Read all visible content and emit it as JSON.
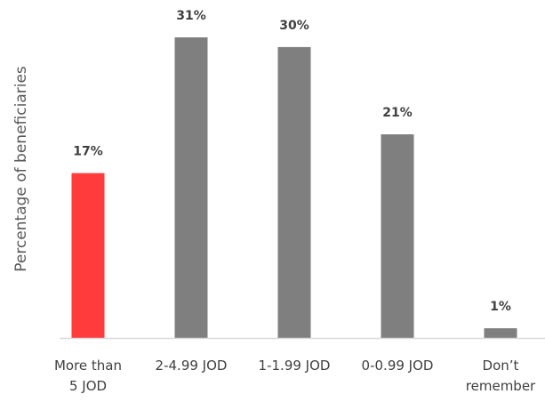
{
  "chart_data": {
    "type": "bar",
    "title": "",
    "xlabel": "",
    "ylabel": "Percentage of beneficiaries",
    "categories": [
      [
        "More than",
        "5 JOD"
      ],
      [
        "2-4.99 JOD"
      ],
      [
        "1-1.99 JOD"
      ],
      [
        "0-0.99 JOD"
      ],
      [
        "Don’t",
        "remember"
      ]
    ],
    "values": [
      17,
      31,
      30,
      21,
      1
    ],
    "value_labels": [
      "17%",
      "31%",
      "30%",
      "21%",
      "1%"
    ],
    "ylim": [
      0,
      31
    ],
    "grid": false,
    "colors": {
      "highlight": "#ff3b3b",
      "default": "#7f7f7f",
      "axis": "#d9d9d9"
    },
    "highlight_index": 0
  }
}
